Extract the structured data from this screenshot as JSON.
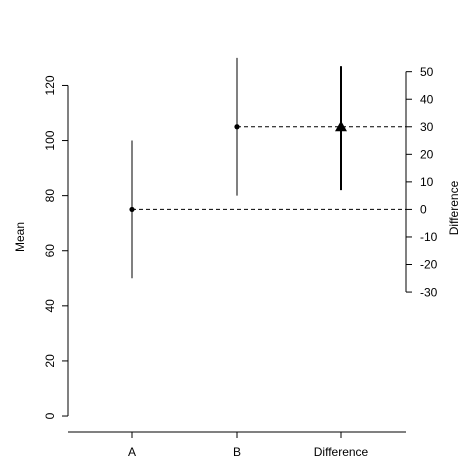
{
  "chart_data": {
    "type": "scatter",
    "categories": [
      "A",
      "B",
      "Difference"
    ],
    "left_axis": {
      "label": "Mean",
      "ticks": [
        0,
        20,
        40,
        60,
        80,
        100,
        120
      ],
      "lim": [
        -5.8,
        136.5
      ]
    },
    "right_axis": {
      "label": "Difference",
      "ticks": [
        -30,
        -20,
        -10,
        0,
        10,
        20,
        30,
        40,
        50
      ],
      "zero_at_mean": 75
    },
    "points": [
      {
        "category": "A",
        "mean": 75,
        "lower": 50,
        "upper": 100,
        "marker": "circle"
      },
      {
        "category": "B",
        "mean": 105,
        "lower": 80,
        "upper": 130,
        "marker": "circle"
      }
    ],
    "difference": {
      "category": "Difference",
      "value": 30,
      "lower": 7,
      "upper": 52,
      "marker": "triangle"
    },
    "reference_lines": [
      {
        "from": "A",
        "level_mean": 75
      },
      {
        "from": "B",
        "level_mean": 105
      }
    ],
    "colors": {
      "ink": "#000000",
      "background": "#ffffff"
    }
  }
}
